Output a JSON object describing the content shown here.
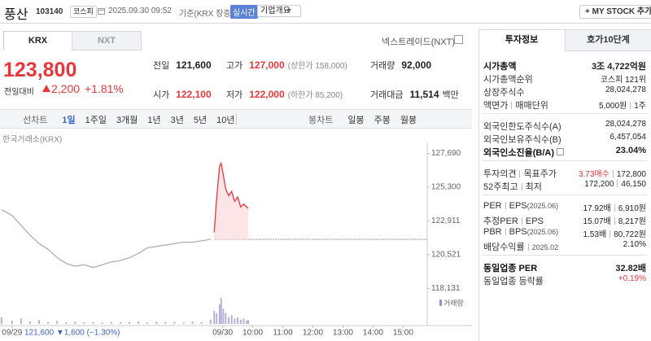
{
  "header": {
    "name": "풍산",
    "code": "103140",
    "market": "코스피",
    "datetime": "2025.09.30 09:52",
    "basis": "기준(KRX 장중)",
    "realtime": "실시간",
    "overview": "기업개요",
    "mystock": "+ MY STOCK 추가"
  },
  "tabs": {
    "krx": "KRX",
    "nxt": "NXT",
    "nextrade": "넥스트레이드(NXT)"
  },
  "price": {
    "current": "123,800",
    "change_label": "전일대비",
    "change": "2,200",
    "rate": "+1.81%"
  },
  "summary": {
    "rows": [
      [
        {
          "label": "전일",
          "value": "121,600"
        },
        {
          "label": "고가",
          "value": "127,000",
          "note": "(상한가 158,000)"
        },
        {
          "label": "거래량",
          "value": "92,000"
        }
      ],
      [
        {
          "label": "시가",
          "value": "122,100"
        },
        {
          "label": "저가",
          "value": "122,000",
          "note": "(하한가 85,200)"
        },
        {
          "label": "거래대금",
          "value": "11,514",
          "note": "백만"
        }
      ]
    ]
  },
  "periods": {
    "line_label": "선차트",
    "line_items": [
      "1일",
      "1주일",
      "3개월",
      "1년",
      "3년",
      "5년",
      "10년"
    ],
    "candle_label": "봉차트",
    "candle_items": [
      "일봉",
      "주봉",
      "월봉"
    ]
  },
  "chart_data": {
    "type": "line",
    "source": "한국거래소(KRX)",
    "volume_label": "거래량",
    "prev_info": "121,600 ▼1,600 (−1.30%)",
    "prev_close": 121600,
    "xlim": [
      -0.4,
      13.8
    ],
    "ylim": [
      117800,
      128300
    ],
    "xticks": [
      {
        "value": 0,
        "label": "09/29"
      },
      {
        "value": 7,
        "label": "09/30"
      },
      {
        "value": 8,
        "label": "10:00"
      },
      {
        "value": 9,
        "label": "11:00"
      },
      {
        "value": 10,
        "label": "12:00"
      },
      {
        "value": 11,
        "label": "13:00"
      },
      {
        "value": 12,
        "label": "14:00"
      },
      {
        "value": 13,
        "label": "15:00"
      }
    ],
    "yticks": [
      {
        "value": 127690,
        "label": "127,690"
      },
      {
        "value": 125300,
        "label": "125,300"
      },
      {
        "value": 122911,
        "label": "122,911"
      },
      {
        "value": 120521,
        "label": "120,521"
      },
      {
        "value": 118131,
        "label": "118,131"
      }
    ],
    "series": [
      {
        "color": "#b0b0b0",
        "x": [
          -0.35,
          0.0,
          0.3,
          0.6,
          0.9,
          1.2,
          1.5,
          1.8,
          2.1,
          2.4,
          2.7,
          3.0,
          3.3,
          3.6,
          3.9,
          4.2,
          4.5,
          4.8,
          5.1,
          5.4,
          5.7,
          6.0,
          6.3,
          6.6
        ],
        "values": [
          123700,
          123300,
          122600,
          121900,
          121300,
          120900,
          120300,
          119900,
          119700,
          119800,
          119600,
          119800,
          120000,
          120100,
          120300,
          120600,
          121000,
          121100,
          121200,
          121300,
          121400,
          121400,
          121500,
          121600
        ],
        "volumes": [
          3000,
          1500,
          2500,
          1200,
          1800,
          900,
          1400,
          800,
          1100,
          700,
          900,
          600,
          1000,
          800,
          900,
          1200,
          700,
          1000,
          800,
          900,
          600,
          1100,
          900,
          2000
        ]
      },
      {
        "color": "#e8363b",
        "x": [
          6.72,
          6.8,
          6.9,
          6.95,
          7.02,
          7.1,
          7.2,
          7.3,
          7.4,
          7.5,
          7.6,
          7.7,
          7.8,
          7.85
        ],
        "values": [
          122100,
          124500,
          126800,
          127000,
          126200,
          125200,
          124700,
          125000,
          124300,
          124600,
          123900,
          124100,
          123900,
          123800
        ],
        "volumes": [
          6000,
          5000,
          9000,
          12000,
          7000,
          5000,
          3000,
          4000,
          2500,
          3000,
          2000,
          2500,
          1500,
          1800
        ]
      }
    ]
  },
  "info": {
    "tabs": [
      "투자정보",
      "호가10단계"
    ],
    "sections": [
      [
        {
          "label": "시가총액",
          "value": "3조 4,722억원"
        },
        {
          "label": "시가총액순위",
          "value": "코스피 121위"
        },
        {
          "label": "상장주식수",
          "value": "28,024,278"
        },
        {
          "label": "액면가",
          "label2": "매매단위",
          "value": "5,000원",
          "value2": "1주"
        }
      ],
      [
        {
          "label": "외국인한도주식수(A)",
          "value": "28,024,278"
        },
        {
          "label": "외국인보유주식수(B)",
          "value": "6,457,054"
        },
        {
          "label": "외국인소진율(B/A)",
          "value": "23.04%"
        }
      ],
      [
        {
          "label": "투자의견",
          "label2": "목표주가",
          "value": "3.73매수",
          "value2": "172,800"
        },
        {
          "label": "52주최고",
          "label2": "최저",
          "value": "172,200",
          "value2": "46,150"
        }
      ],
      [
        {
          "label": "PER",
          "label2": "EPS",
          "note": "(2025.06)",
          "value": "17.92배",
          "value2": "6,910원"
        },
        {
          "label": "추정PER",
          "label2": "EPS",
          "value": "15.07배",
          "value2": "8,217원"
        },
        {
          "label": "PBR",
          "label2": "BPS",
          "note": "(2025.06)",
          "value": "1.53배",
          "value2": "80,722원"
        },
        {
          "label": "배당수익률",
          "label2": "2025.02",
          "value": "2.10%"
        }
      ],
      [
        {
          "label": "동일업종 PER",
          "value": "32.82배"
        },
        {
          "label": "동일업종 등락률",
          "value": "+0.19%"
        }
      ]
    ]
  }
}
